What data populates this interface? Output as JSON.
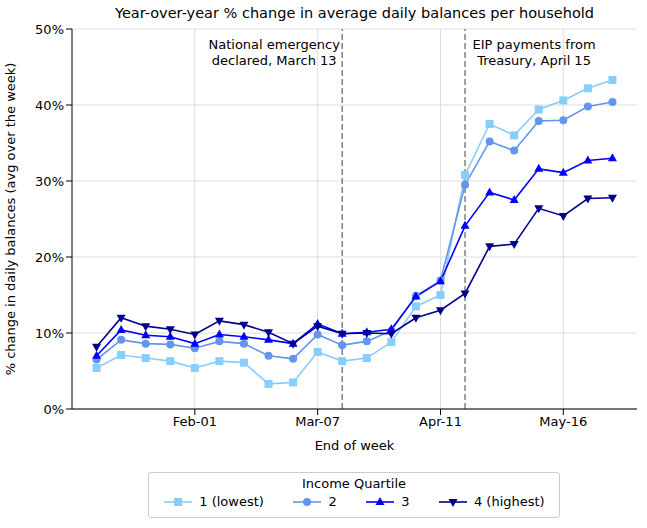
{
  "chart_data": {
    "type": "line",
    "title": "Year-over-year % change in average daily balances per household",
    "x_label": "End of week",
    "y_label": "% change in daily balances (avg over the week)",
    "x": [
      4,
      11,
      18,
      25,
      32,
      39,
      46,
      53,
      60,
      67,
      74,
      81,
      88,
      95,
      102,
      109,
      116,
      123,
      130,
      137,
      144,
      151
    ],
    "xlim": [
      -3,
      158
    ],
    "xticks": [
      {
        "value": 32,
        "label": "Feb-01"
      },
      {
        "value": 67,
        "label": "Mar-07"
      },
      {
        "value": 102,
        "label": "Apr-11"
      },
      {
        "value": 137,
        "label": "May-16"
      }
    ],
    "ylim": [
      0,
      50
    ],
    "yticks": [
      {
        "value": 0,
        "label": "0%"
      },
      {
        "value": 10,
        "label": "10%"
      },
      {
        "value": 20,
        "label": "20%"
      },
      {
        "value": 30,
        "label": "30%"
      },
      {
        "value": 40,
        "label": "40%"
      },
      {
        "value": 50,
        "label": "50%"
      }
    ],
    "grid": true,
    "legend": "bottom",
    "legend_title": "Income Quartile",
    "series": [
      {
        "name": "1 (lowest)",
        "color": "#87cefa",
        "marker": "square",
        "values": [
          5.4,
          7.1,
          6.7,
          6.3,
          5.4,
          6.3,
          6.1,
          3.3,
          3.5,
          7.5,
          6.3,
          6.7,
          8.8,
          13.5,
          15.0,
          30.8,
          37.5,
          36.0,
          39.4,
          40.6,
          42.2,
          43.3
        ]
      },
      {
        "name": "2",
        "color": "#6495ed",
        "marker": "circle",
        "values": [
          6.5,
          9.1,
          8.6,
          8.5,
          8.0,
          8.9,
          8.6,
          7.0,
          6.6,
          9.8,
          8.4,
          8.9,
          10.3,
          14.9,
          16.9,
          29.5,
          35.2,
          34.0,
          37.9,
          38.0,
          39.8,
          40.4
        ]
      },
      {
        "name": "3",
        "color": "#0000ff",
        "marker": "triangle-up",
        "values": [
          7.0,
          10.4,
          9.7,
          9.5,
          8.6,
          9.8,
          9.5,
          9.1,
          8.6,
          11.2,
          9.9,
          10.1,
          10.5,
          14.8,
          16.8,
          24.1,
          28.5,
          27.5,
          31.6,
          31.1,
          32.7,
          33.0
        ]
      },
      {
        "name": "4 (highest)",
        "color": "#00008b",
        "marker": "triangle-down",
        "values": [
          8.2,
          12.0,
          10.9,
          10.5,
          9.8,
          11.6,
          11.1,
          10.1,
          8.6,
          10.9,
          9.9,
          10.0,
          9.9,
          12.0,
          13.0,
          15.2,
          21.4,
          21.7,
          26.4,
          25.4,
          27.7,
          27.8
        ]
      }
    ],
    "annotations": [
      {
        "x": 74,
        "text": [
          "National emergency",
          "declared, March 13"
        ],
        "color": "#808080",
        "line_style": "dashed"
      },
      {
        "x": 109,
        "text": [
          "EIP payments from",
          "Treasury, April 15"
        ],
        "color": "#808080",
        "line_style": "dashed"
      }
    ]
  }
}
